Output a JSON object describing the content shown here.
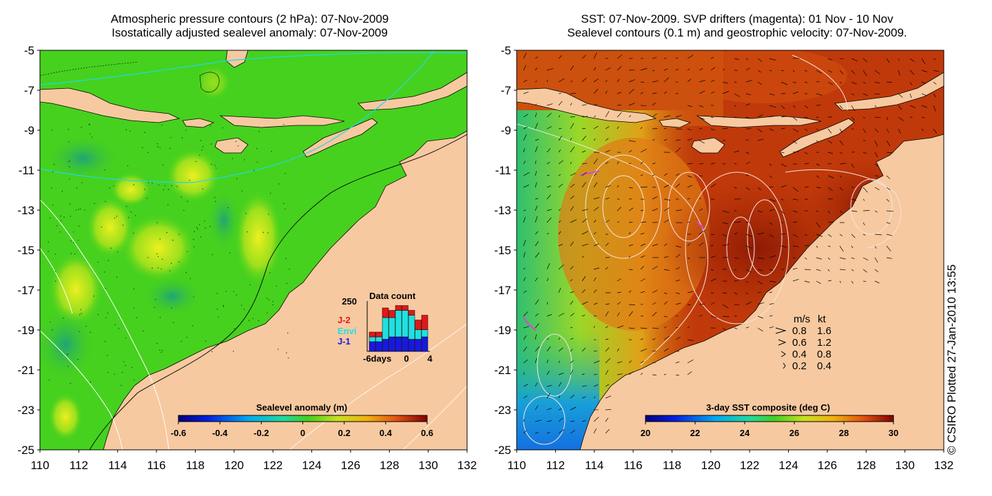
{
  "left_panel": {
    "title_line1": "Atmospheric pressure contours (2 hPa): 07-Nov-2009",
    "title_line2": "Isostatically adjusted sealevel anomaly: 07-Nov-2009",
    "y_ticks": [
      "-5",
      "-7",
      "-9",
      "-11",
      "-13",
      "-15",
      "-17",
      "-19",
      "-21",
      "-23",
      "-25"
    ],
    "x_ticks": [
      "110",
      "112",
      "114",
      "116",
      "118",
      "120",
      "122",
      "124",
      "126",
      "128",
      "130",
      "132"
    ],
    "colorbar": {
      "label": "Sealevel anomaly (m)",
      "ticks": [
        "-0.6",
        "-0.4",
        "-0.2",
        "0",
        "0.2",
        "0.4",
        "0.6"
      ]
    },
    "inset": {
      "title": "Data count",
      "y_label": "250",
      "x_label_left": "-6days",
      "x_label_mid": "0",
      "x_label_right": "4",
      "legend": [
        "J-2",
        "Envi",
        "J-1"
      ],
      "legend_colors": [
        "#e01818",
        "#20e0e0",
        "#1818e0"
      ],
      "bars_j1": [
        0.2,
        0.2,
        0.25,
        0.3,
        0.3,
        0.3,
        0.25,
        0.25,
        0.3
      ],
      "bars_envi": [
        0.1,
        0.1,
        0.45,
        0.4,
        0.55,
        0.55,
        0.5,
        0.2,
        0.15
      ],
      "bars_j2": [
        0.1,
        0.1,
        0.2,
        0.15,
        0.1,
        0.1,
        0.1,
        0.2,
        0.3
      ]
    }
  },
  "right_panel": {
    "title_line1": "SST: 07-Nov-2009. SVP drifters (magenta): 01 Nov - 10 Nov",
    "title_line2": "Sealevel contours (0.1 m) and geostrophic velocity: 07-Nov-2009.",
    "y_ticks": [
      "-5",
      "-7",
      "-9",
      "-11",
      "-13",
      "-15",
      "-17",
      "-19",
      "-21",
      "-23",
      "-25"
    ],
    "x_ticks": [
      "110",
      "112",
      "114",
      "116",
      "118",
      "120",
      "122",
      "124",
      "126",
      "128",
      "130",
      "132"
    ],
    "colorbar": {
      "label": "3-day SST composite (deg C)",
      "ticks": [
        "20",
        "22",
        "24",
        "26",
        "28",
        "30"
      ]
    },
    "velocity_legend": {
      "header_ms": "m/s",
      "header_kt": "kt",
      "rows": [
        {
          "ms": "0.8",
          "kt": "1.6"
        },
        {
          "ms": "0.6",
          "kt": "1.2"
        },
        {
          "ms": "0.4",
          "kt": "0.8"
        },
        {
          "ms": "0.2",
          "kt": "0.4"
        }
      ]
    }
  },
  "credit": "© CSIRO Plotted 27-Jan-2010 13:55",
  "colors": {
    "land": "#f7c9a0",
    "sla_base": "#46d11e",
    "sst_base": "#c0390a"
  }
}
